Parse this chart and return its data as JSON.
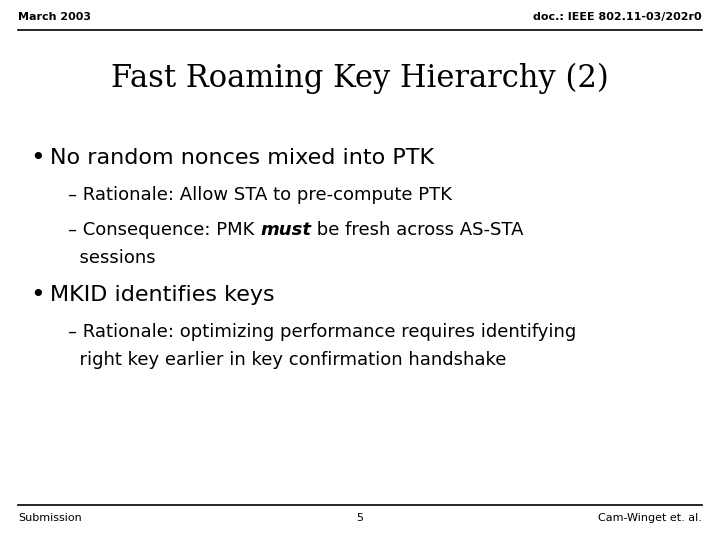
{
  "bg_color": "#ffffff",
  "header_left": "March 2003",
  "header_right": "doc.: IEEE 802.11-03/202r0",
  "title": "Fast Roaming Key Hierarchy (2)",
  "footer_left": "Submission",
  "footer_center": "5",
  "footer_right": "Cam-Winget et. al.",
  "header_fontsize": 8,
  "title_fontsize": 22,
  "bullet_fontsize": 16,
  "sub_fontsize": 13,
  "footer_fontsize": 8
}
